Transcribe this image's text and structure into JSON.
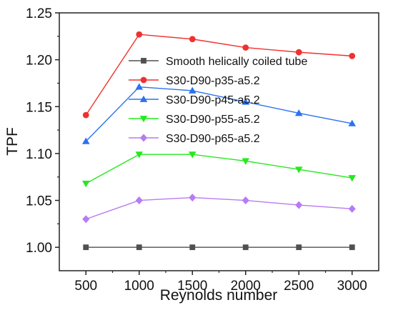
{
  "chart_data": {
    "type": "line",
    "xlabel": "Reynolds number",
    "ylabel": "TPF",
    "x": [
      500,
      1000,
      1500,
      2000,
      2500,
      3000
    ],
    "xlim": [
      250,
      3250
    ],
    "ylim": [
      0.975,
      1.25
    ],
    "xticks": [
      500,
      1000,
      1500,
      2000,
      2500,
      3000
    ],
    "yticks": [
      1.0,
      1.05,
      1.1,
      1.15,
      1.2,
      1.25
    ],
    "ytick_labels": [
      "1.00",
      "1.05",
      "1.10",
      "1.15",
      "1.20",
      "1.25"
    ],
    "grid": false,
    "legend_position": "inside-top-center",
    "series": [
      {
        "name": "Smooth helically coiled tube",
        "values": [
          1.0,
          1.0,
          1.0,
          1.0,
          1.0,
          1.0
        ],
        "color": "#505050",
        "marker": "square"
      },
      {
        "name": "S30-D90-p35-a5.2",
        "values": [
          1.141,
          1.227,
          1.222,
          1.213,
          1.208,
          1.204
        ],
        "color": "#f0312e",
        "marker": "circle"
      },
      {
        "name": "S30-D90-p45-a5.2",
        "values": [
          1.113,
          1.171,
          1.167,
          1.155,
          1.143,
          1.132
        ],
        "color": "#2b72f0",
        "marker": "triangle-up"
      },
      {
        "name": "S30-D90-p55-a5.2",
        "values": [
          1.068,
          1.099,
          1.099,
          1.092,
          1.083,
          1.074
        ],
        "color": "#27e81e",
        "marker": "triangle-down"
      },
      {
        "name": "S30-D90-p65-a5.2",
        "values": [
          1.03,
          1.05,
          1.053,
          1.05,
          1.045,
          1.041
        ],
        "color": "#b77bf4",
        "marker": "diamond"
      }
    ]
  }
}
